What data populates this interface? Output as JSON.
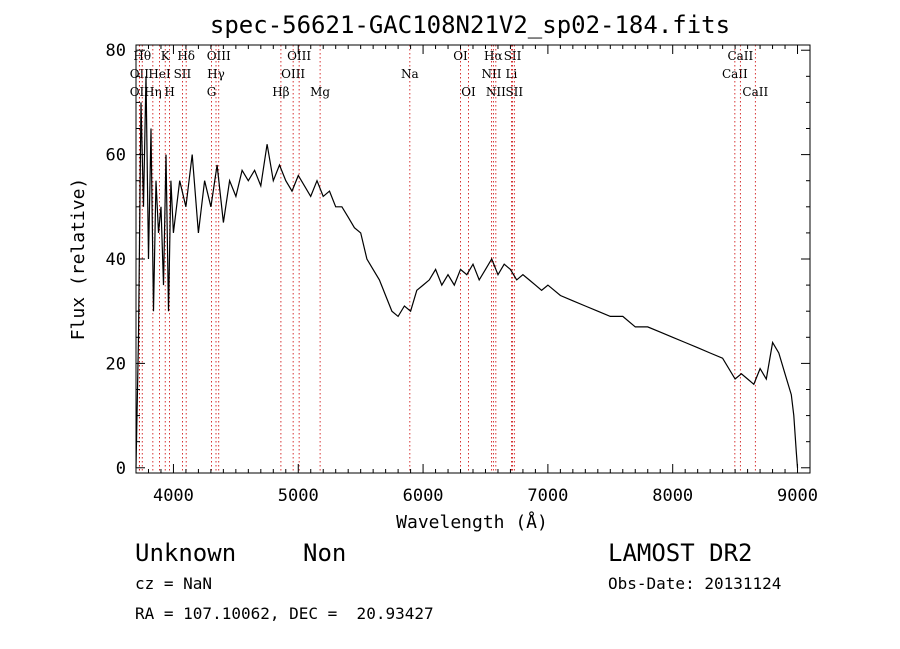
{
  "chart_data": {
    "type": "line",
    "title": "spec-56621-GAC108N21V2_sp02-184.fits",
    "xlabel": "Wavelength (Å)",
    "ylabel": "Flux (relative)",
    "xlim": [
      3700,
      9100
    ],
    "ylim": [
      -1,
      81
    ],
    "xticks": [
      4000,
      5000,
      6000,
      7000,
      8000,
      9000
    ],
    "yticks": [
      0,
      20,
      40,
      60,
      80
    ],
    "grid": false,
    "series": [
      {
        "x": [
          3700,
          3720,
          3740,
          3760,
          3780,
          3800,
          3820,
          3840,
          3860,
          3880,
          3900,
          3920,
          3940,
          3960,
          3980,
          4000,
          4050,
          4100,
          4150,
          4200,
          4250,
          4300,
          4350,
          4400,
          4450,
          4500,
          4550,
          4600,
          4650,
          4700,
          4750,
          4800,
          4850,
          4900,
          4950,
          5000,
          5050,
          5100,
          5150,
          5200,
          5250,
          5300,
          5350,
          5400,
          5450,
          5500,
          5550,
          5600,
          5650,
          5700,
          5750,
          5800,
          5850,
          5900,
          5950,
          6000,
          6050,
          6100,
          6150,
          6200,
          6250,
          6300,
          6350,
          6400,
          6450,
          6500,
          6550,
          6600,
          6650,
          6700,
          6750,
          6800,
          6850,
          6900,
          6950,
          7000,
          7100,
          7200,
          7300,
          7400,
          7500,
          7600,
          7700,
          7800,
          7900,
          8000,
          8100,
          8200,
          8300,
          8400,
          8500,
          8550,
          8600,
          8650,
          8700,
          8750,
          8800,
          8850,
          8900,
          8950,
          8970,
          8990,
          9000
        ],
        "values": [
          0,
          25,
          70,
          50,
          75,
          40,
          65,
          30,
          55,
          45,
          50,
          35,
          60,
          30,
          55,
          45,
          55,
          50,
          60,
          45,
          55,
          50,
          58,
          47,
          55,
          52,
          57,
          55,
          57,
          54,
          62,
          55,
          58,
          55,
          53,
          56,
          54,
          52,
          55,
          52,
          53,
          50,
          50,
          48,
          46,
          45,
          40,
          38,
          36,
          33,
          30,
          29,
          31,
          30,
          34,
          35,
          36,
          38,
          35,
          37,
          35,
          38,
          37,
          39,
          36,
          38,
          40,
          37,
          39,
          38,
          36,
          37,
          36,
          35,
          34,
          35,
          33,
          32,
          31,
          30,
          29,
          29,
          27,
          27,
          26,
          25,
          24,
          23,
          22,
          21,
          17,
          18,
          17,
          16,
          19,
          17,
          24,
          22,
          18,
          14,
          10,
          3,
          0
        ]
      }
    ],
    "lines": [
      {
        "label": "OII",
        "x": 3727,
        "row": 1
      },
      {
        "label": "Hθ",
        "x": 3750,
        "row": 0
      },
      {
        "label": "Hη",
        "x": 3835,
        "row": 2
      },
      {
        "label": "OII",
        "x": 3727,
        "row": 2
      },
      {
        "label": "HeI",
        "x": 3889,
        "row": 1
      },
      {
        "label": "K",
        "x": 3934,
        "row": 0
      },
      {
        "label": "H",
        "x": 3969,
        "row": 2
      },
      {
        "label": "SII",
        "x": 4072,
        "row": 1
      },
      {
        "label": "Hδ",
        "x": 4102,
        "row": 0
      },
      {
        "label": "G",
        "x": 4305,
        "row": 2
      },
      {
        "label": "Hγ",
        "x": 4341,
        "row": 1
      },
      {
        "label": "OIII",
        "x": 4363,
        "row": 0
      },
      {
        "label": "Hβ",
        "x": 4861,
        "row": 2
      },
      {
        "label": "OIII",
        "x": 4959,
        "row": 1
      },
      {
        "label": "OIII",
        "x": 5007,
        "row": 0
      },
      {
        "label": "Mg",
        "x": 5175,
        "row": 2
      },
      {
        "label": "Na",
        "x": 5894,
        "row": 1
      },
      {
        "label": "OI",
        "x": 6300,
        "row": 0
      },
      {
        "label": "OI",
        "x": 6364,
        "row": 2
      },
      {
        "label": "NII",
        "x": 6548,
        "row": 1
      },
      {
        "label": "Hα",
        "x": 6563,
        "row": 0
      },
      {
        "label": "NII",
        "x": 6583,
        "row": 2
      },
      {
        "label": "Li",
        "x": 6708,
        "row": 1
      },
      {
        "label": "SII",
        "x": 6717,
        "row": 0
      },
      {
        "label": "SII",
        "x": 6731,
        "row": 2
      },
      {
        "label": "CaII",
        "x": 8498,
        "row": 1
      },
      {
        "label": "CaII",
        "x": 8542,
        "row": 0
      },
      {
        "label": "CaII",
        "x": 8662,
        "row": 2
      }
    ]
  },
  "info": {
    "object_class": "Unknown",
    "subclass": "Non",
    "survey": "LAMOST DR2",
    "redshift": "cz = NaN",
    "obs_date": "Obs-Date: 20131124",
    "coords": "RA = 107.10062, DEC =  20.93427"
  },
  "colors": {
    "spectrum": "#000000",
    "line_markers": "#cc0000"
  }
}
